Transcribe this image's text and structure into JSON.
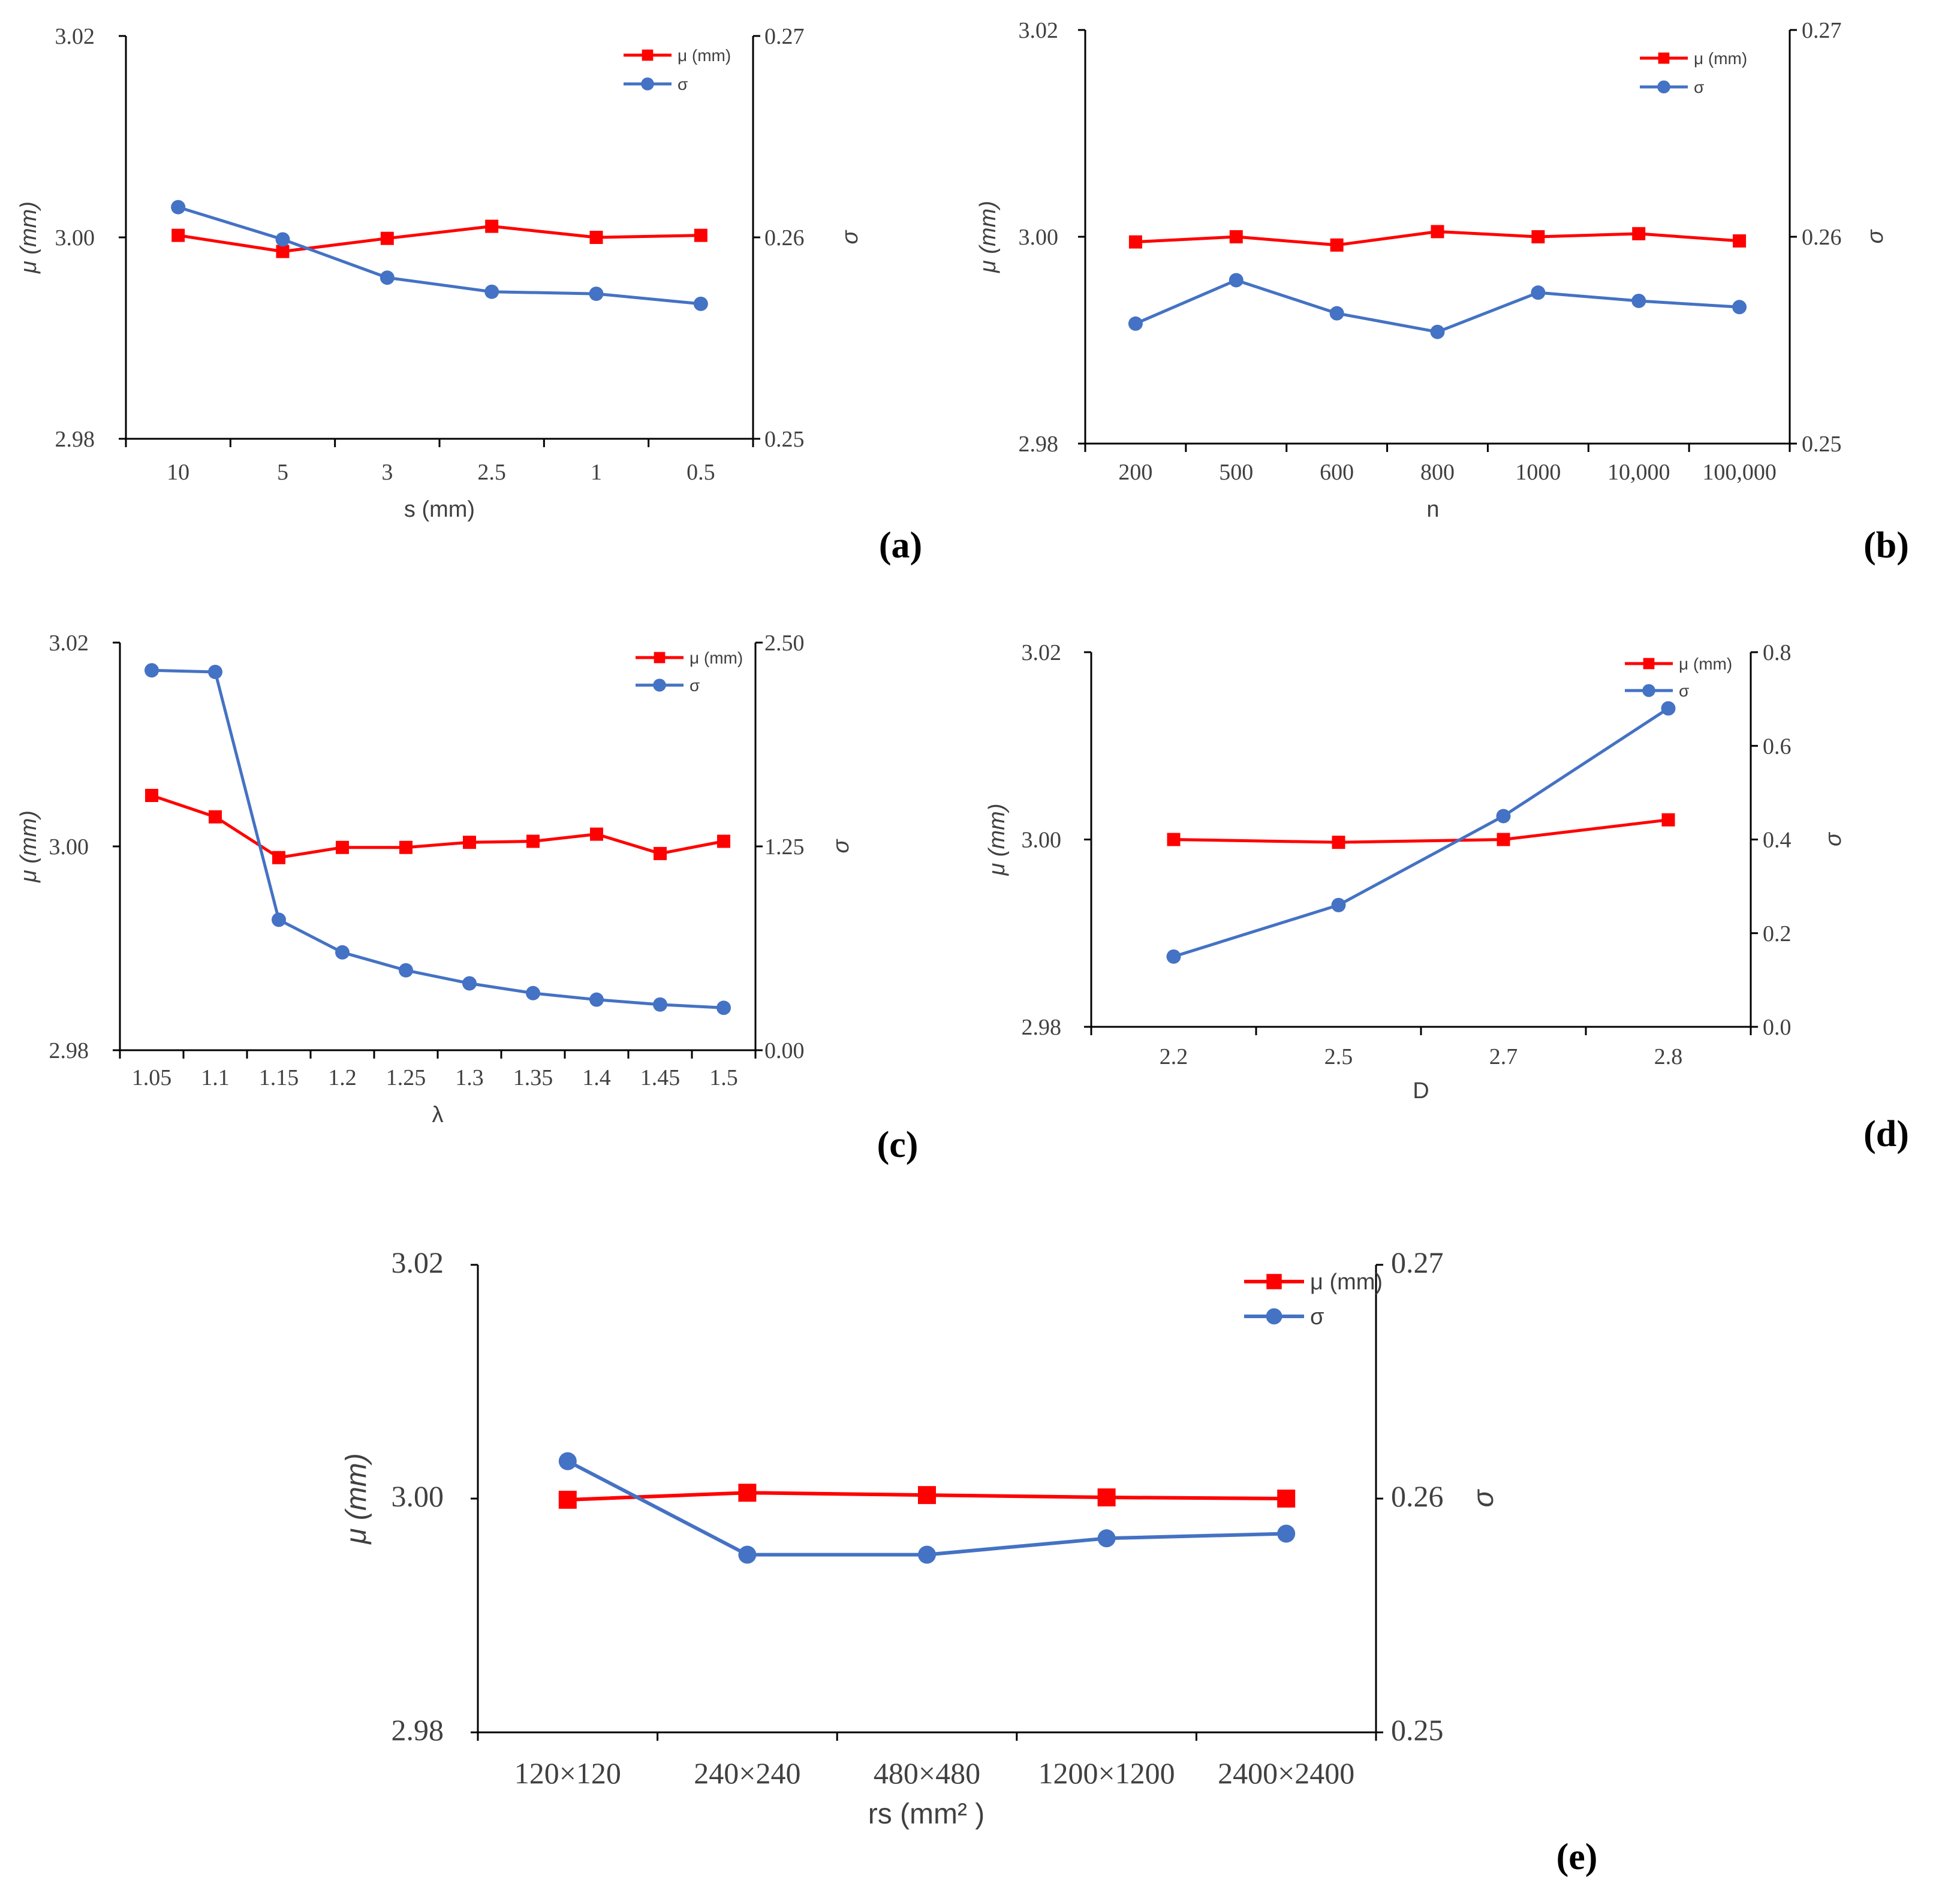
{
  "colors": {
    "mu": "#ff0000",
    "sigma": "#4472c4",
    "axis": "#000000",
    "text": "#404040"
  },
  "chart_data": [
    {
      "id": "a",
      "panel_label": "(a)",
      "type": "line",
      "xlabel": "s (mm)",
      "ylabel": "μ (mm)",
      "y2label": "σ",
      "categories": [
        "10",
        "5",
        "3",
        "2.5",
        "1",
        "0.5"
      ],
      "ylim": [
        2.98,
        3.02
      ],
      "yticks": [
        "2.98",
        "3.00",
        "3.02"
      ],
      "y2lim": [
        0.25,
        0.27
      ],
      "y2ticks": [
        "0.25",
        "0.26",
        "0.27"
      ],
      "legend_position": "top-right",
      "series": [
        {
          "name": "μ (mm)",
          "axis": "left",
          "marker": "square",
          "values": [
            3.0002,
            2.9986,
            2.9999,
            3.0011,
            3.0,
            3.0002
          ]
        },
        {
          "name": "σ",
          "axis": "right",
          "marker": "circle",
          "values": [
            0.2615,
            0.2599,
            0.258,
            0.2573,
            0.2572,
            0.2567
          ]
        }
      ]
    },
    {
      "id": "b",
      "panel_label": "(b)",
      "type": "line",
      "xlabel": "n",
      "ylabel": "μ (mm)",
      "y2label": "σ",
      "categories": [
        "200",
        "500",
        "600",
        "800",
        "1000",
        "10,000",
        "100,000"
      ],
      "ylim": [
        2.98,
        3.02
      ],
      "yticks": [
        "2.98",
        "3.00",
        "3.02"
      ],
      "y2lim": [
        0.25,
        0.27
      ],
      "y2ticks": [
        "0.25",
        "0.26",
        "0.27"
      ],
      "legend_position": "top-right",
      "series": [
        {
          "name": "μ (mm)",
          "axis": "left",
          "marker": "square",
          "values": [
            2.9995,
            3.0,
            2.9992,
            3.0005,
            3.0,
            3.0003,
            2.9996
          ]
        },
        {
          "name": "σ",
          "axis": "right",
          "marker": "circle",
          "values": [
            0.2558,
            0.2579,
            0.2563,
            0.2554,
            0.2573,
            0.2569,
            0.2566
          ]
        }
      ]
    },
    {
      "id": "c",
      "panel_label": "(c)",
      "type": "line",
      "xlabel": "λ",
      "ylabel": "μ (mm)",
      "y2label": "σ",
      "categories": [
        "1.05",
        "1.1",
        "1.15",
        "1.2",
        "1.25",
        "1.3",
        "1.35",
        "1.4",
        "1.45",
        "1.5"
      ],
      "ylim": [
        2.98,
        3.02
      ],
      "yticks": [
        "2.98",
        "3.00",
        "3.02"
      ],
      "y2lim": [
        0,
        2.5
      ],
      "y2ticks": [
        "0.00",
        "1.25",
        "2.50"
      ],
      "legend_position": "top-right",
      "series": [
        {
          "name": "μ (mm)",
          "axis": "left",
          "marker": "square",
          "values": [
            3.005,
            3.0029,
            2.9989,
            2.9999,
            2.9999,
            3.0004,
            3.0005,
            3.0012,
            2.9993,
            3.0005
          ]
        },
        {
          "name": "σ",
          "axis": "right",
          "marker": "circle",
          "values": [
            2.33,
            2.32,
            0.8,
            0.6,
            0.49,
            0.41,
            0.35,
            0.31,
            0.28,
            0.26
          ]
        }
      ]
    },
    {
      "id": "d",
      "panel_label": "(d)",
      "type": "line",
      "xlabel": "D",
      "ylabel": "μ (mm)",
      "y2label": "σ",
      "categories": [
        "2.2",
        "2.5",
        "2.7",
        "2.8"
      ],
      "ylim": [
        2.98,
        3.02
      ],
      "yticks": [
        "2.98",
        "3.00",
        "3.02"
      ],
      "y2lim": [
        0,
        0.8
      ],
      "y2ticks": [
        "0.0",
        "0.2",
        "0.4",
        "0.6",
        "0.8"
      ],
      "legend_position": "top-right",
      "series": [
        {
          "name": "μ (mm)",
          "axis": "left",
          "marker": "square",
          "values": [
            3.0,
            2.9997,
            3.0,
            3.0021
          ]
        },
        {
          "name": "σ",
          "axis": "right",
          "marker": "circle",
          "values": [
            0.15,
            0.26,
            0.45,
            0.68
          ]
        }
      ]
    },
    {
      "id": "e",
      "panel_label": "(e)",
      "type": "line",
      "xlabel": "rs (mm² )",
      "ylabel": "μ (mm)",
      "y2label": "σ",
      "categories": [
        "120×120",
        "240×240",
        "480×480",
        "1200×1200",
        "2400×2400"
      ],
      "ylim": [
        2.98,
        3.02
      ],
      "yticks": [
        "2.98",
        "3.00",
        "3.02"
      ],
      "y2lim": [
        0.25,
        0.27
      ],
      "y2ticks": [
        "0.25",
        "0.26",
        "0.27"
      ],
      "legend_position": "top-right",
      "series": [
        {
          "name": "μ (mm)",
          "axis": "left",
          "marker": "square",
          "values": [
            2.9999,
            3.0005,
            3.0003,
            3.0001,
            3.0
          ]
        },
        {
          "name": "σ",
          "axis": "right",
          "marker": "circle",
          "values": [
            0.2616,
            0.2576,
            0.2576,
            0.2583,
            0.2585
          ]
        }
      ]
    }
  ]
}
